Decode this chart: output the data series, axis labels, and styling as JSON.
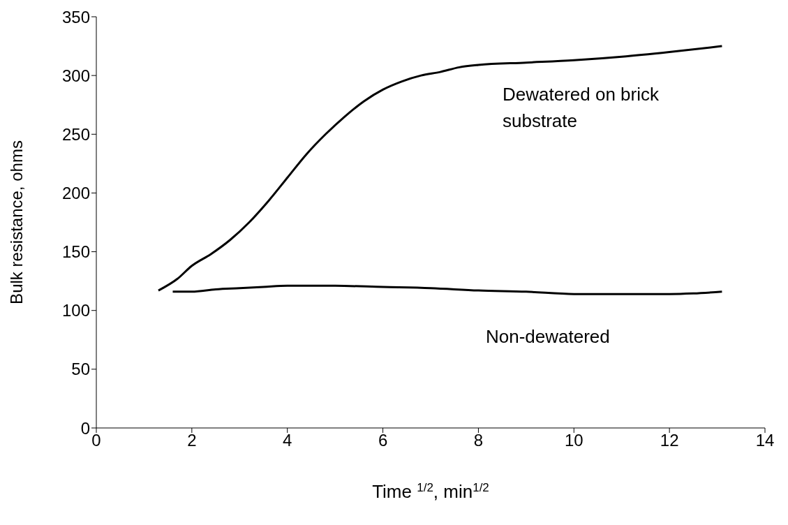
{
  "chart_data": {
    "type": "line",
    "xlabel": "Time $^{1/2}$, min$^{1/2}$",
    "ylabel": "Bulk resistance, ohms",
    "xlim": [
      0,
      14
    ],
    "xticks": [
      0,
      2,
      4,
      6,
      8,
      10,
      12,
      14
    ],
    "ylim": [
      0,
      350
    ],
    "yticks": [
      0,
      50,
      100,
      150,
      200,
      250,
      300,
      350
    ],
    "marker": "none",
    "line_style": "solid",
    "series": [
      {
        "name": "Dewatered on brick substrate",
        "color": "#000000",
        "x": [
          1.3,
          1.7,
          2.0,
          2.4,
          2.8,
          3.2,
          3.6,
          4.0,
          4.4,
          4.8,
          5.2,
          5.6,
          6.0,
          6.4,
          6.8,
          7.2,
          7.6,
          8.0,
          9.0,
          10.0,
          11.0,
          12.0,
          13.1
        ],
        "values": [
          117,
          127,
          138,
          148,
          160,
          175,
          193,
          213,
          233,
          250,
          265,
          278,
          288,
          295,
          300,
          303,
          307,
          309,
          311,
          313,
          316,
          320,
          325
        ]
      },
      {
        "name": "Non-dewatered",
        "color": "#000000",
        "x": [
          1.6,
          2.0,
          2.5,
          3.0,
          3.5,
          4.0,
          4.5,
          5.0,
          6.0,
          7.0,
          8.0,
          9.0,
          10.0,
          11.0,
          12.0,
          12.5,
          13.1
        ],
        "values": [
          116,
          116,
          118,
          119,
          120,
          121,
          121,
          121,
          120,
          119,
          117,
          116,
          114,
          114,
          114,
          114.5,
          116
        ]
      }
    ]
  }
}
